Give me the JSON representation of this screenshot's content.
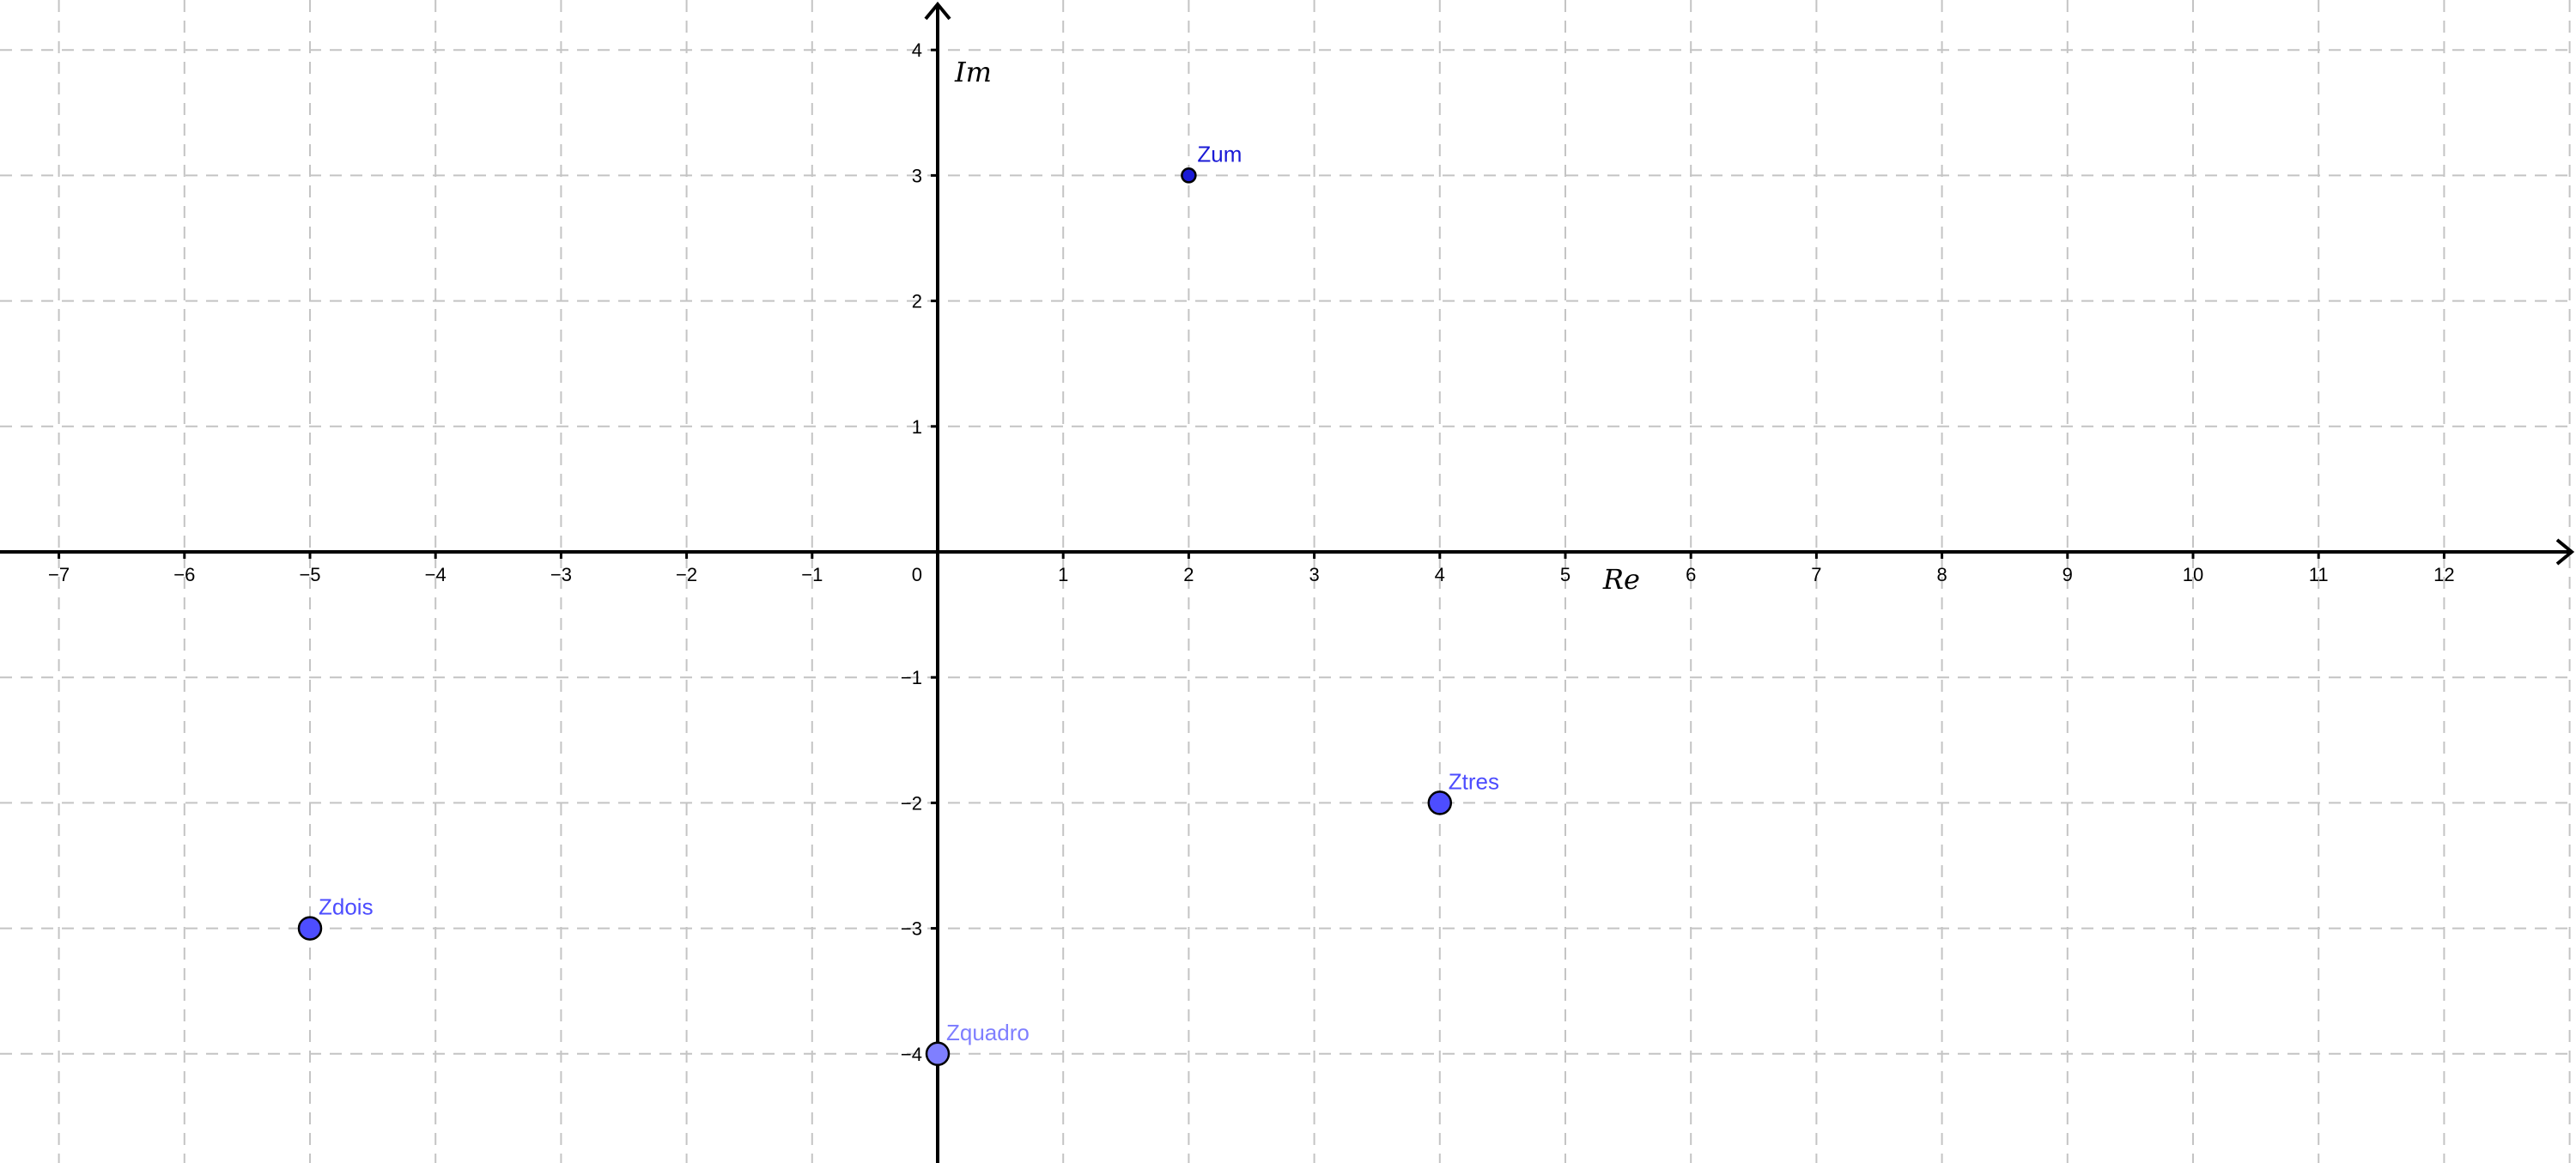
{
  "chart_data": {
    "type": "scatter",
    "xlabel": "Re",
    "ylabel": "Im",
    "xlim": [
      -7.5,
      13.0
    ],
    "ylim": [
      -4.9,
      4.4
    ],
    "grid": true,
    "x_ticks": [
      -7,
      -6,
      -5,
      -4,
      -3,
      -2,
      -1,
      1,
      2,
      3,
      4,
      5,
      6,
      7,
      8,
      9,
      10,
      11,
      12
    ],
    "y_ticks": [
      -4,
      -3,
      -2,
      -1,
      1,
      2,
      3,
      4
    ],
    "origin_label": "0",
    "points": [
      {
        "name": "Zum",
        "x": 2,
        "y": 3,
        "color": "#1a1ad6",
        "size": "small"
      },
      {
        "name": "Zdois",
        "x": -5,
        "y": -3,
        "color": "#4d4dff",
        "size": "large"
      },
      {
        "name": "Ztres",
        "x": 4,
        "y": -2,
        "color": "#4d4dff",
        "size": "large"
      },
      {
        "name": "Zquadro",
        "x": 0,
        "y": -4,
        "color": "#7f7fff",
        "size": "large"
      }
    ]
  }
}
